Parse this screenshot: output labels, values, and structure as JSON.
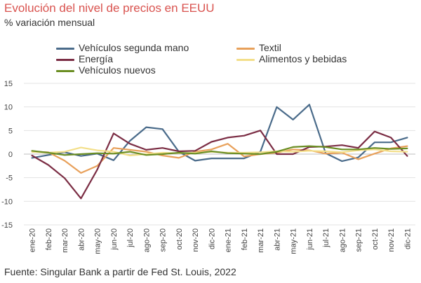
{
  "title": "Evolución del nivel de precios en EEUU",
  "subtitle": "% variación mensual",
  "source": "Fuente: Singular Bank a partir de Fed St. Louis, 2022",
  "chart_data": {
    "type": "line",
    "title": "Evolución del nivel de precios en EEUU",
    "subtitle": "% variación mensual",
    "xlabel": "",
    "ylabel": "",
    "ylim": [
      -15,
      15
    ],
    "yticks": [
      15,
      10,
      5,
      0,
      -5,
      -10,
      -15
    ],
    "ytick_labels": [
      "15",
      "10",
      "5",
      "0",
      "-5",
      "-10",
      "-15"
    ],
    "grid": true,
    "legend_position": "top",
    "categories": [
      "ene-20",
      "feb-20",
      "mar-20",
      "abr-20",
      "may-20",
      "jun-20",
      "jul-20",
      "ago-20",
      "sep-20",
      "oct-20",
      "nov-20",
      "dic-20",
      "ene-21",
      "feb-21",
      "mar-21",
      "abr-21",
      "may-21",
      "jun-21",
      "jul-21",
      "ago-21",
      "sep-21",
      "oct-21",
      "nov-21",
      "dic-21"
    ],
    "series": [
      {
        "name": "Vehículos segunda mano",
        "color": "#4a6b8a",
        "values": [
          -0.8,
          -0.2,
          0.4,
          -0.4,
          0.1,
          -1.3,
          2.8,
          5.7,
          5.3,
          0.5,
          -1.4,
          -0.9,
          -0.9,
          -0.9,
          0.5,
          10.0,
          7.3,
          10.5,
          0.2,
          -1.5,
          -0.7,
          2.5,
          2.5,
          3.5
        ]
      },
      {
        "name": "Textil",
        "color": "#e8a05a",
        "values": [
          0.5,
          0.4,
          -1.4,
          -4.0,
          -2.5,
          1.3,
          0.9,
          0.5,
          -0.3,
          -0.8,
          0.5,
          1.0,
          2.2,
          -0.5,
          0.0,
          0.3,
          1.0,
          0.8,
          0.1,
          0.3,
          -1.1,
          0.1,
          1.2,
          1.7
        ]
      },
      {
        "name": "Energía",
        "color": "#7b2d44",
        "values": [
          -0.3,
          -2.3,
          -5.1,
          -9.4,
          -3.3,
          4.4,
          2.2,
          0.9,
          1.3,
          0.6,
          0.7,
          2.6,
          3.5,
          3.9,
          5.0,
          0.0,
          0.0,
          1.5,
          1.6,
          1.9,
          1.3,
          4.8,
          3.5,
          -0.4
        ]
      },
      {
        "name": "Alimentos y bebidas",
        "color": "#f3df8a",
        "values": [
          0.5,
          0.3,
          0.5,
          1.4,
          0.8,
          0.5,
          -0.3,
          0.0,
          0.3,
          0.2,
          0.3,
          0.5,
          0.3,
          0.3,
          0.4,
          0.6,
          0.5,
          0.7,
          0.6,
          0.4,
          0.8,
          1.0,
          0.6,
          0.5
        ]
      },
      {
        "name": "Vehículos nuevos",
        "color": "#6b8e23",
        "values": [
          0.7,
          0.3,
          -0.2,
          0.0,
          0.2,
          0.1,
          0.5,
          -0.2,
          0.0,
          0.3,
          0.1,
          0.6,
          0.2,
          0.1,
          0.0,
          0.5,
          1.5,
          1.7,
          1.5,
          1.0,
          1.0,
          1.3,
          1.1,
          1.2
        ]
      }
    ]
  }
}
